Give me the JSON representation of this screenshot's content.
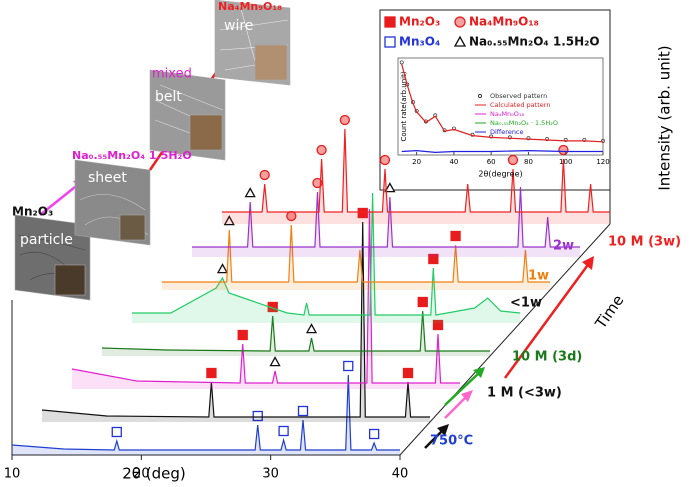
{
  "chart_data": [
    {
      "type": "line",
      "xlabel": "2θ (deg)",
      "ylabel": "Intensity (arb. unit)",
      "time_label": "Time",
      "xlim": [
        10,
        40
      ],
      "xticks": [
        10,
        20,
        30,
        40
      ],
      "ylim": [
        0,
        100
      ],
      "legend": [
        {
          "label": "Mn₂O₃",
          "symbol": "square",
          "color": "#e81c1c",
          "fill": "#e81c1c"
        },
        {
          "label": "Na₄Mn₉O₁₈",
          "symbol": "circle",
          "color": "#e81c1c",
          "fill": "#f7a0a0"
        },
        {
          "label": "Mn₃O₄",
          "symbol": "square",
          "color": "#2233dd",
          "fill": "#ffffff"
        },
        {
          "label": "Na₀.₅₅Mn₂O₄ 1.5H₂O",
          "symbol": "triangle",
          "color": "#111111",
          "fill": "#ffffff"
        }
      ],
      "series": [
        {
          "name": "750°C",
          "color": "#1f3fcf",
          "x": [
            10,
            14,
            17.9,
            18.1,
            18.3,
            22,
            28.8,
            29.0,
            29.2,
            30.8,
            31.0,
            31.2,
            32.3,
            32.5,
            32.7,
            35.8,
            36.0,
            36.2,
            37.8,
            38.0,
            38.2,
            40
          ],
          "values": [
            10,
            6,
            5,
            14,
            5,
            5,
            5,
            30,
            5,
            5,
            15,
            5,
            5,
            35,
            5,
            5,
            80,
            5,
            5,
            12,
            5,
            5
          ],
          "markers": [
            [],
            [],
            [
              18.1,
              29.0,
              31.0,
              32.5,
              36.0,
              38.0
            ],
            []
          ]
        },
        {
          "name": "1 M (<3w)",
          "color": "#111111",
          "x": [
            10,
            15,
            22.9,
            23.1,
            23.3,
            30,
            34.6,
            34.8,
            35.0,
            38.1,
            38.3,
            38.5,
            40
          ],
          "values": [
            12,
            6,
            5,
            40,
            5,
            5,
            5,
            200,
            5,
            5,
            40,
            5,
            5
          ],
          "markers": [
            [
              23.1,
              34.8,
              38.3
            ],
            [],
            [],
            []
          ]
        },
        {
          "color": "#e020d0",
          "x": [
            10,
            15,
            23.0,
            23.2,
            23.4,
            25.5,
            25.7,
            25.9,
            32.8,
            33.0,
            33.2,
            38.1,
            38.3,
            38.5,
            40
          ],
          "values": [
            20,
            8,
            6,
            45,
            6,
            6,
            18,
            6,
            6,
            180,
            6,
            6,
            55,
            6,
            6
          ],
          "markers": [
            [
              23.2,
              38.3
            ],
            [],
            [],
            [
              25.7
            ]
          ]
        },
        {
          "name": "10 M (3d)",
          "color": "#1a7a1a",
          "x": [
            10,
            15,
            23.0,
            23.2,
            23.4,
            26.0,
            26.2,
            26.4,
            34.6,
            34.8,
            35.0,
            40
          ],
          "values": [
            8,
            6,
            5,
            40,
            5,
            5,
            18,
            5,
            5,
            45,
            5,
            5
          ],
          "markers": [
            [
              23.2,
              34.8
            ],
            [],
            [],
            [
              26.2
            ]
          ]
        },
        {
          "name": "<1w",
          "color": "#22cc66",
          "x": [
            10,
            13,
            16.5,
            17.0,
            17.5,
            22,
            23.3,
            23.5,
            23.7,
            28.4,
            28.6,
            28.8,
            33.1,
            33.3,
            33.5,
            36.5,
            37.5,
            38.5,
            40
          ],
          "values": [
            10,
            10,
            35,
            45,
            30,
            10,
            8,
            20,
            8,
            8,
            130,
            8,
            8,
            55,
            8,
            15,
            25,
            12,
            10
          ],
          "markers": [
            [
              33.3
            ],
            [],
            [],
            [
              17.0
            ]
          ]
        },
        {
          "name": "1w",
          "color": "#f08010",
          "x": [
            10,
            13,
            15.0,
            15.2,
            15.4,
            18,
            19.8,
            20.0,
            20.2,
            25.1,
            25.3,
            25.5,
            32.5,
            32.7,
            32.9,
            37.9,
            38.1,
            38.3,
            40
          ],
          "values": [
            8,
            8,
            8,
            60,
            8,
            8,
            8,
            65,
            8,
            8,
            40,
            8,
            8,
            45,
            8,
            8,
            40,
            8,
            8
          ],
          "markers": [
            [
              32.7
            ],
            [
              20.0
            ],
            [],
            [
              15.2
            ]
          ]
        },
        {
          "name": "2w",
          "color": "#9933cc",
          "x": [
            10,
            12,
            14.3,
            14.5,
            14.7,
            19.5,
            19.7,
            19.9,
            25.1,
            25.3,
            25.5,
            35.2,
            35.4,
            35.6,
            37.3,
            37.5,
            37.7,
            40
          ],
          "values": [
            10,
            10,
            10,
            55,
            10,
            10,
            65,
            10,
            10,
            60,
            10,
            10,
            70,
            10,
            10,
            40,
            10,
            10
          ],
          "markers": [
            [],
            [
              19.7
            ],
            [],
            [
              14.5,
              25.3
            ]
          ]
        },
        {
          "name": "10 M (3w)",
          "color": "#ee2020",
          "x": [
            10,
            13.1,
            13.3,
            13.5,
            17.5,
            17.7,
            17.9,
            19.3,
            19.5,
            19.7,
            22.4,
            22.6,
            22.8,
            28.8,
            29.0,
            29.2,
            32.3,
            32.5,
            32.7,
            36.2,
            36.4,
            36.6,
            38.3,
            38.5,
            38.7,
            40
          ],
          "values": [
            12,
            12,
            40,
            12,
            12,
            65,
            12,
            12,
            95,
            12,
            12,
            55,
            12,
            12,
            40,
            12,
            12,
            55,
            12,
            12,
            65,
            12,
            12,
            40,
            12,
            12
          ],
          "markers": [
            [],
            [
              13.3,
              17.7,
              19.5,
              22.6,
              32.5,
              36.4
            ],
            [],
            []
          ]
        }
      ],
      "annotations": [
        "Mn₂O₃",
        "particle",
        "Na₀.₅₅Mn₂O₄ 1.5H₂O",
        "sheet",
        "mixed",
        "belt",
        "Na₄Mn₉O₁₈",
        "wire"
      ]
    },
    {
      "type": "line",
      "xlabel": "2θ(degree)",
      "ylabel": "Count rate(arb.unit)",
      "xlim": [
        10,
        120
      ],
      "xticks": [
        20,
        40,
        60,
        80,
        100,
        120
      ],
      "ylim": [
        -10,
        100
      ],
      "legend_labels": [
        "Na₄Mn₉O₁₈",
        "Na₀.₅₅Mn₂O₄ · 1.5H₂O"
      ],
      "series": [
        {
          "name": "Observed pattern",
          "color": "#333333",
          "x": [
            12,
            15,
            18,
            20,
            25,
            30,
            35,
            40,
            50,
            60,
            70,
            80,
            90,
            100,
            110,
            120
          ],
          "values": [
            95,
            70,
            50,
            40,
            28,
            35,
            18,
            20,
            13,
            11,
            10,
            9,
            8,
            7,
            7,
            6
          ]
        },
        {
          "name": "Calculated pattern",
          "color": "#e02020",
          "x": [
            12,
            15,
            18,
            20,
            25,
            30,
            35,
            40,
            50,
            60,
            70,
            80,
            90,
            100,
            110,
            120
          ],
          "values": [
            93,
            69,
            49,
            39,
            27,
            34,
            17,
            19,
            12,
            10,
            9,
            8,
            7,
            6,
            6,
            5
          ]
        },
        {
          "name": "Difference",
          "color": "#2020e0",
          "x": [
            12,
            20,
            30,
            40,
            60,
            80,
            100,
            120
          ],
          "values": [
            -6,
            -5,
            -7,
            -6,
            -6,
            -5,
            -6,
            -6
          ]
        }
      ]
    }
  ]
}
